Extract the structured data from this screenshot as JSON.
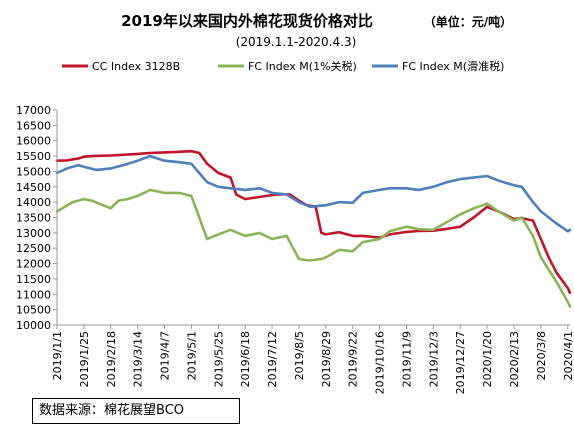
{
  "chart_data": {
    "type": "line",
    "title": "2019年以来国内外棉花现货价格对比",
    "unit": "（单位：元/吨）",
    "subtitle": "(2019.1.1-2020.4.3)",
    "ylim": [
      10000,
      17000
    ],
    "yticks": [
      10000,
      10500,
      11000,
      11500,
      12000,
      12500,
      13000,
      13500,
      14000,
      14500,
      15000,
      15500,
      16000,
      16500,
      17000
    ],
    "x_range": [
      "2019-01-01",
      "2020-04-03"
    ],
    "xtick_labels": [
      "2019/1/1",
      "2019/1/25",
      "2019/2/18",
      "2019/3/14",
      "2019/4/7",
      "2019/5/1",
      "2019/5/25",
      "2019/6/18",
      "2019/7/12",
      "2019/8/5",
      "2019/8/29",
      "2019/9/22",
      "2019/10/16",
      "2019/11/9",
      "2019/12/3",
      "2019/12/27",
      "2020/1/20",
      "2020/2/13",
      "2020/3/8",
      "2020/4/1"
    ],
    "grid": false,
    "legend_position": "top",
    "series": [
      {
        "name": "CC Index 3128B",
        "color": "#c0152a",
        "points": [
          [
            "2019-01-01",
            15350
          ],
          [
            "2019-01-10",
            15360
          ],
          [
            "2019-01-20",
            15420
          ],
          [
            "2019-01-25",
            15480
          ],
          [
            "2019-02-01",
            15500
          ],
          [
            "2019-02-18",
            15520
          ],
          [
            "2019-03-01",
            15540
          ],
          [
            "2019-03-14",
            15570
          ],
          [
            "2019-03-25",
            15600
          ],
          [
            "2019-04-07",
            15620
          ],
          [
            "2019-04-20",
            15640
          ],
          [
            "2019-05-01",
            15660
          ],
          [
            "2019-05-08",
            15600
          ],
          [
            "2019-05-15",
            15250
          ],
          [
            "2019-05-25",
            14950
          ],
          [
            "2019-06-05",
            14800
          ],
          [
            "2019-06-10",
            14250
          ],
          [
            "2019-06-18",
            14100
          ],
          [
            "2019-07-01",
            14170
          ],
          [
            "2019-07-12",
            14230
          ],
          [
            "2019-07-20",
            14260
          ],
          [
            "2019-07-28",
            14250
          ],
          [
            "2019-08-05",
            14050
          ],
          [
            "2019-08-12",
            13900
          ],
          [
            "2019-08-20",
            13850
          ],
          [
            "2019-08-25",
            13000
          ],
          [
            "2019-08-29",
            12950
          ],
          [
            "2019-09-10",
            13020
          ],
          [
            "2019-09-22",
            12900
          ],
          [
            "2019-10-01",
            12900
          ],
          [
            "2019-10-16",
            12850
          ],
          [
            "2019-10-25",
            12950
          ],
          [
            "2019-11-09",
            13030
          ],
          [
            "2019-11-20",
            13060
          ],
          [
            "2019-12-03",
            13070
          ],
          [
            "2019-12-15",
            13130
          ],
          [
            "2019-12-27",
            13200
          ],
          [
            "2020-01-08",
            13500
          ],
          [
            "2020-01-20",
            13850
          ],
          [
            "2020-01-30",
            13700
          ],
          [
            "2020-02-13",
            13450
          ],
          [
            "2020-02-20",
            13480
          ],
          [
            "2020-03-01",
            13400
          ],
          [
            "2020-03-08",
            12800
          ],
          [
            "2020-03-15",
            12200
          ],
          [
            "2020-03-22",
            11700
          ],
          [
            "2020-04-01",
            11200
          ],
          [
            "2020-04-03",
            11050
          ]
        ]
      },
      {
        "name": "FC Index M(1%关税)",
        "color": "#8cb358",
        "points": [
          [
            "2019-01-01",
            13700
          ],
          [
            "2019-01-08",
            13850
          ],
          [
            "2019-01-15",
            14000
          ],
          [
            "2019-01-25",
            14100
          ],
          [
            "2019-02-01",
            14050
          ],
          [
            "2019-02-18",
            13800
          ],
          [
            "2019-02-25",
            14050
          ],
          [
            "2019-03-05",
            14100
          ],
          [
            "2019-03-14",
            14200
          ],
          [
            "2019-03-25",
            14400
          ],
          [
            "2019-04-07",
            14300
          ],
          [
            "2019-04-20",
            14300
          ],
          [
            "2019-05-01",
            14200
          ],
          [
            "2019-05-08",
            13500
          ],
          [
            "2019-05-15",
            12800
          ],
          [
            "2019-05-25",
            12950
          ],
          [
            "2019-06-05",
            13100
          ],
          [
            "2019-06-18",
            12900
          ],
          [
            "2019-07-01",
            13000
          ],
          [
            "2019-07-12",
            12800
          ],
          [
            "2019-07-25",
            12900
          ],
          [
            "2019-08-05",
            12150
          ],
          [
            "2019-08-15",
            12100
          ],
          [
            "2019-08-25",
            12150
          ],
          [
            "2019-08-29",
            12200
          ],
          [
            "2019-09-10",
            12450
          ],
          [
            "2019-09-22",
            12400
          ],
          [
            "2019-10-01",
            12700
          ],
          [
            "2019-10-16",
            12800
          ],
          [
            "2019-10-25",
            13050
          ],
          [
            "2019-11-09",
            13200
          ],
          [
            "2019-11-20",
            13120
          ],
          [
            "2019-12-03",
            13100
          ],
          [
            "2019-12-15",
            13350
          ],
          [
            "2019-12-27",
            13600
          ],
          [
            "2020-01-08",
            13800
          ],
          [
            "2020-01-20",
            13950
          ],
          [
            "2020-01-30",
            13700
          ],
          [
            "2020-02-13",
            13400
          ],
          [
            "2020-02-20",
            13500
          ],
          [
            "2020-03-01",
            12900
          ],
          [
            "2020-03-08",
            12200
          ],
          [
            "2020-03-15",
            11800
          ],
          [
            "2020-03-22",
            11400
          ],
          [
            "2020-04-01",
            10750
          ],
          [
            "2020-04-03",
            10600
          ]
        ]
      },
      {
        "name": "FC Index M(滑准税)",
        "color": "#4e7fb8",
        "points": [
          [
            "2019-01-01",
            14950
          ],
          [
            "2019-01-10",
            15100
          ],
          [
            "2019-01-20",
            15200
          ],
          [
            "2019-01-25",
            15150
          ],
          [
            "2019-02-05",
            15050
          ],
          [
            "2019-02-18",
            15100
          ],
          [
            "2019-03-01",
            15200
          ],
          [
            "2019-03-14",
            15350
          ],
          [
            "2019-03-25",
            15500
          ],
          [
            "2019-04-07",
            15350
          ],
          [
            "2019-04-20",
            15300
          ],
          [
            "2019-05-01",
            15250
          ],
          [
            "2019-05-08",
            14950
          ],
          [
            "2019-05-15",
            14650
          ],
          [
            "2019-05-25",
            14500
          ],
          [
            "2019-06-05",
            14450
          ],
          [
            "2019-06-18",
            14400
          ],
          [
            "2019-07-01",
            14450
          ],
          [
            "2019-07-12",
            14300
          ],
          [
            "2019-07-25",
            14250
          ],
          [
            "2019-08-05",
            14000
          ],
          [
            "2019-08-15",
            13850
          ],
          [
            "2019-08-29",
            13900
          ],
          [
            "2019-09-10",
            14000
          ],
          [
            "2019-09-22",
            13980
          ],
          [
            "2019-10-01",
            14300
          ],
          [
            "2019-10-16",
            14400
          ],
          [
            "2019-10-25",
            14450
          ],
          [
            "2019-11-09",
            14450
          ],
          [
            "2019-11-20",
            14400
          ],
          [
            "2019-12-03",
            14500
          ],
          [
            "2019-12-15",
            14650
          ],
          [
            "2019-12-27",
            14750
          ],
          [
            "2020-01-08",
            14800
          ],
          [
            "2020-01-20",
            14850
          ],
          [
            "2020-01-30",
            14700
          ],
          [
            "2020-02-13",
            14550
          ],
          [
            "2020-02-20",
            14500
          ],
          [
            "2020-03-01",
            14000
          ],
          [
            "2020-03-08",
            13700
          ],
          [
            "2020-03-15",
            13500
          ],
          [
            "2020-03-22",
            13300
          ],
          [
            "2020-04-01",
            13050
          ],
          [
            "2020-04-03",
            13100
          ]
        ]
      }
    ]
  },
  "source_text": "数据来源：棉花展望BCO"
}
